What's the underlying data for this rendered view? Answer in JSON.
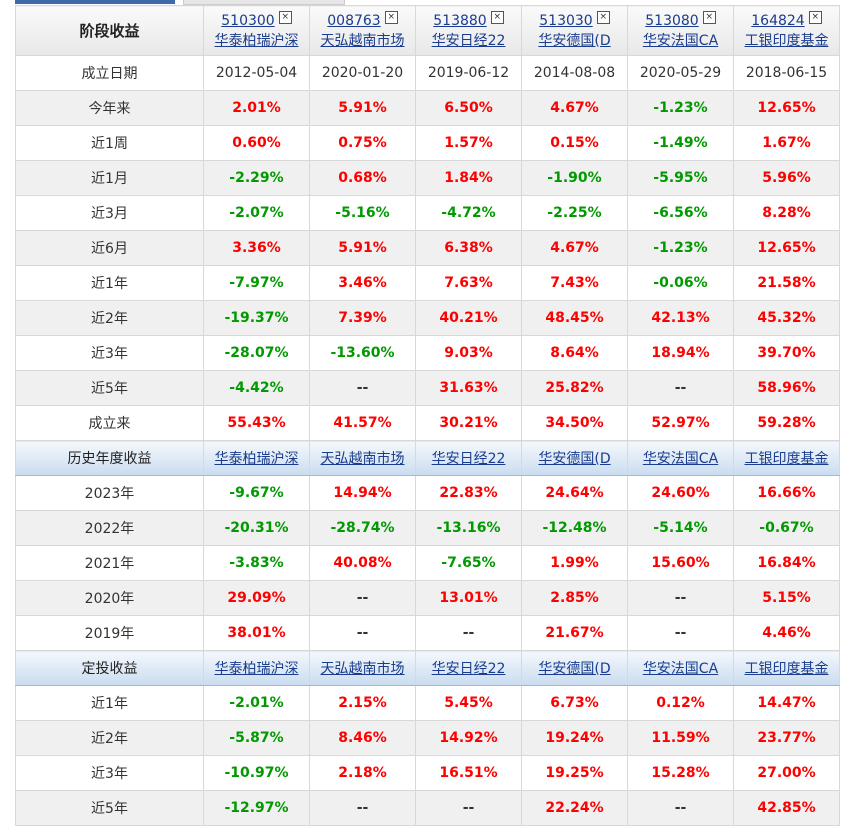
{
  "header_title": "阶段收益",
  "funds": [
    {
      "code": "510300",
      "name": "华泰柏瑞沪深",
      "date": "2012-05-04"
    },
    {
      "code": "008763",
      "name": "天弘越南市场",
      "date": "2020-01-20"
    },
    {
      "code": "513880",
      "name": "华安日经22",
      "date": "2019-06-12"
    },
    {
      "code": "513030",
      "name": "华安德国(D",
      "date": "2014-08-08"
    },
    {
      "code": "513080",
      "name": "华安法国CA",
      "date": "2020-05-29"
    },
    {
      "code": "164824",
      "name": "工银印度基金",
      "date": "2018-06-15"
    }
  ],
  "remove_glyph": "☒",
  "date_label": "成立日期",
  "sections": [
    {
      "title": null,
      "rows": [
        {
          "label": "今年来",
          "values": [
            "2.01%",
            "5.91%",
            "6.50%",
            "4.67%",
            "-1.23%",
            "12.65%"
          ]
        },
        {
          "label": "近1周",
          "values": [
            "0.60%",
            "0.75%",
            "1.57%",
            "0.15%",
            "-1.49%",
            "1.67%"
          ]
        },
        {
          "label": "近1月",
          "values": [
            "-2.29%",
            "0.68%",
            "1.84%",
            "-1.90%",
            "-5.95%",
            "5.96%"
          ]
        },
        {
          "label": "近3月",
          "values": [
            "-2.07%",
            "-5.16%",
            "-4.72%",
            "-2.25%",
            "-6.56%",
            "8.28%"
          ]
        },
        {
          "label": "近6月",
          "values": [
            "3.36%",
            "5.91%",
            "6.38%",
            "4.67%",
            "-1.23%",
            "12.65%"
          ]
        },
        {
          "label": "近1年",
          "values": [
            "-7.97%",
            "3.46%",
            "7.63%",
            "7.43%",
            "-0.06%",
            "21.58%"
          ]
        },
        {
          "label": "近2年",
          "values": [
            "-19.37%",
            "7.39%",
            "40.21%",
            "48.45%",
            "42.13%",
            "45.32%"
          ]
        },
        {
          "label": "近3年",
          "values": [
            "-28.07%",
            "-13.60%",
            "9.03%",
            "8.64%",
            "18.94%",
            "39.70%"
          ]
        },
        {
          "label": "近5年",
          "values": [
            "-4.42%",
            "--",
            "31.63%",
            "25.82%",
            "--",
            "58.96%"
          ]
        },
        {
          "label": "成立来",
          "values": [
            "55.43%",
            "41.57%",
            "30.21%",
            "34.50%",
            "52.97%",
            "59.28%"
          ]
        }
      ]
    },
    {
      "title": "历史年度收益",
      "rows": [
        {
          "label": "2023年",
          "values": [
            "-9.67%",
            "14.94%",
            "22.83%",
            "24.64%",
            "24.60%",
            "16.66%"
          ]
        },
        {
          "label": "2022年",
          "values": [
            "-20.31%",
            "-28.74%",
            "-13.16%",
            "-12.48%",
            "-5.14%",
            "-0.67%"
          ]
        },
        {
          "label": "2021年",
          "values": [
            "-3.83%",
            "40.08%",
            "-7.65%",
            "1.99%",
            "15.60%",
            "16.84%"
          ]
        },
        {
          "label": "2020年",
          "values": [
            "29.09%",
            "--",
            "13.01%",
            "2.85%",
            "--",
            "5.15%"
          ]
        },
        {
          "label": "2019年",
          "values": [
            "38.01%",
            "--",
            "--",
            "21.67%",
            "--",
            "4.46%"
          ]
        }
      ]
    },
    {
      "title": "定投收益",
      "rows": [
        {
          "label": "近1年",
          "values": [
            "-2.01%",
            "2.15%",
            "5.45%",
            "6.73%",
            "0.12%",
            "14.47%"
          ]
        },
        {
          "label": "近2年",
          "values": [
            "-5.87%",
            "8.46%",
            "14.92%",
            "19.24%",
            "11.59%",
            "23.77%"
          ]
        },
        {
          "label": "近3年",
          "values": [
            "-10.97%",
            "2.18%",
            "16.51%",
            "19.25%",
            "15.28%",
            "27.00%"
          ]
        },
        {
          "label": "近5年",
          "values": [
            "-12.97%",
            "--",
            "--",
            "22.24%",
            "--",
            "42.85%"
          ]
        }
      ]
    }
  ]
}
